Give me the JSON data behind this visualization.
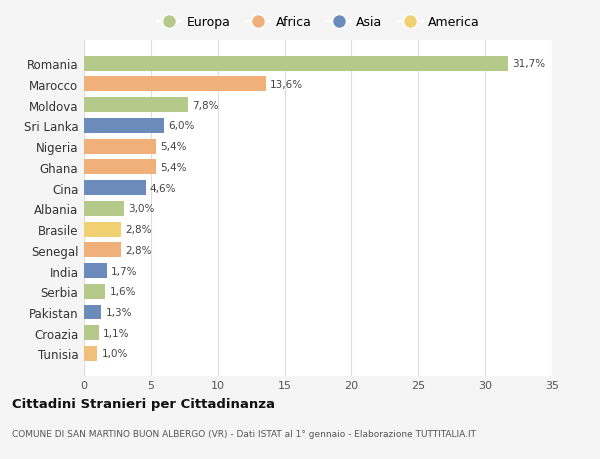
{
  "categories": [
    "Tunisia",
    "Croazia",
    "Pakistan",
    "Serbia",
    "India",
    "Senegal",
    "Brasile",
    "Albania",
    "Cina",
    "Ghana",
    "Nigeria",
    "Sri Lanka",
    "Moldova",
    "Marocco",
    "Romania"
  ],
  "values": [
    1.0,
    1.1,
    1.3,
    1.6,
    1.7,
    2.8,
    2.8,
    3.0,
    4.6,
    5.4,
    5.4,
    6.0,
    7.8,
    13.6,
    31.7
  ],
  "labels": [
    "1,0%",
    "1,1%",
    "1,3%",
    "1,6%",
    "1,7%",
    "2,8%",
    "2,8%",
    "3,0%",
    "4,6%",
    "5,4%",
    "5,4%",
    "6,0%",
    "7,8%",
    "13,6%",
    "31,7%"
  ],
  "colors": [
    "#f0c07a",
    "#b5c98a",
    "#6b8cba",
    "#b5c98a",
    "#6b8cba",
    "#f0b07a",
    "#f0d070",
    "#b5c98a",
    "#6b8cba",
    "#f0b07a",
    "#f0b07a",
    "#6b8cba",
    "#b5c98a",
    "#f0b07a",
    "#b5c98a"
  ],
  "legend_labels": [
    "Europa",
    "Africa",
    "Asia",
    "America"
  ],
  "legend_colors": [
    "#b5c98a",
    "#f0b07a",
    "#6b8cba",
    "#f0d070"
  ],
  "title": "Cittadini Stranieri per Cittadinanza",
  "subtitle": "COMUNE DI SAN MARTINO BUON ALBERGO (VR) - Dati ISTAT al 1° gennaio - Elaborazione TUTTITALIA.IT",
  "xlim": [
    0,
    35
  ],
  "xticks": [
    0,
    5,
    10,
    15,
    20,
    25,
    30,
    35
  ],
  "background_color": "#f5f5f5",
  "bar_background": "#ffffff",
  "grid_color": "#dddddd"
}
